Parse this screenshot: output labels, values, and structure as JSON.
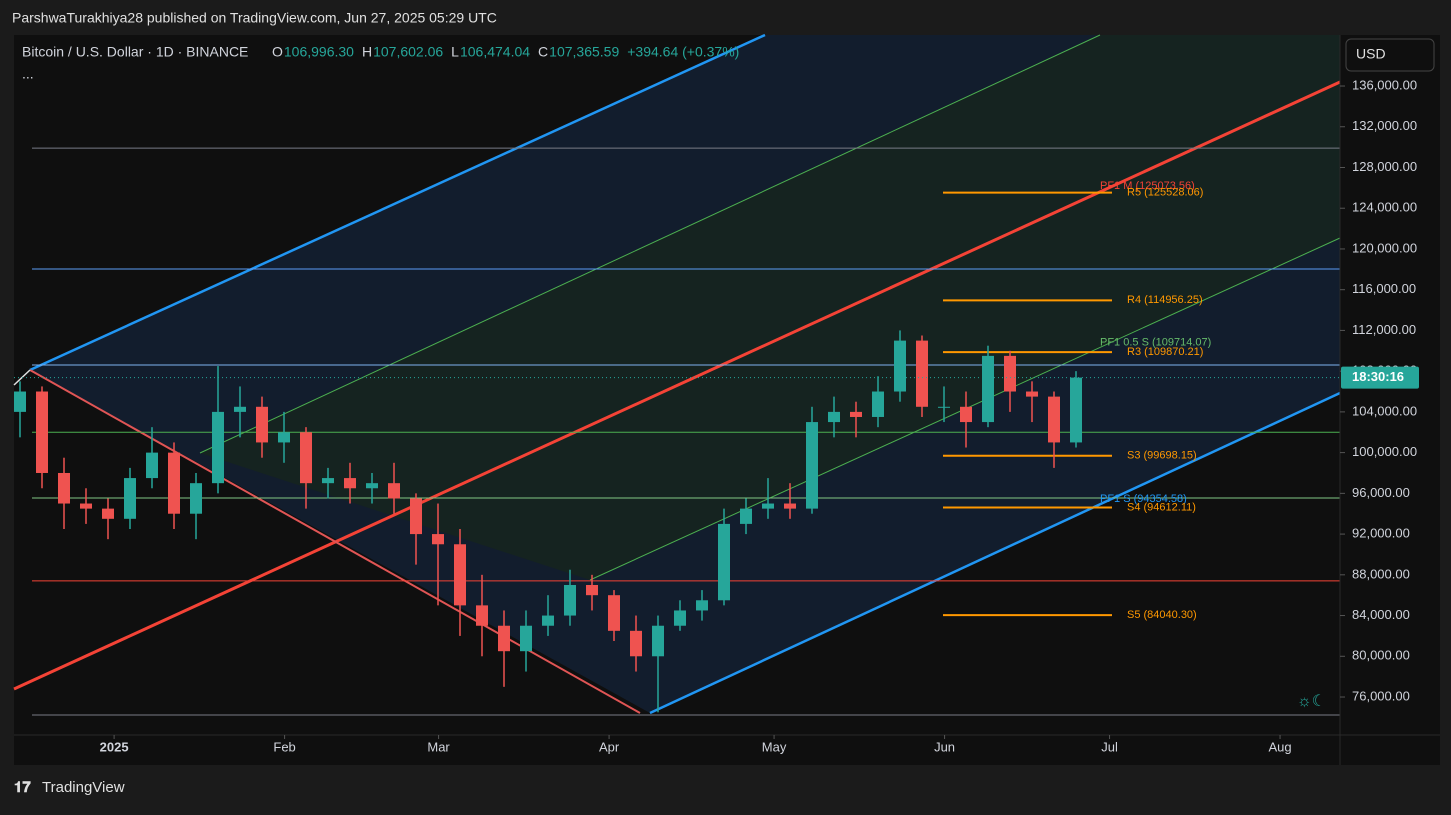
{
  "header": {
    "attribution": "ParshwaTurakhiya28 published on TradingView.com, Jun 27, 2025 05:29 UTC",
    "footer_logo": "TradingView",
    "currency_button": "USD"
  },
  "chart_data": {
    "type": "candlestick",
    "title": "Bitcoin / U.S. Dollar · 1D · BINANCE",
    "ohlc_legend": [
      {
        "key": "O",
        "value": "106,996.30"
      },
      {
        "key": "H",
        "value": "107,602.06"
      },
      {
        "key": "L",
        "value": "106,474.04"
      },
      {
        "key": "C",
        "value": "107,365.59"
      }
    ],
    "change": "+394.64 (+0.37%)",
    "up_color": "#26a69a",
    "down_color": "#ef5350",
    "candles": {
      "open": [
        104000,
        106000,
        98000,
        95000,
        94500,
        93500,
        97500,
        100000,
        94000,
        97000,
        104000,
        104500,
        101000,
        102000,
        97000,
        97500,
        96500,
        97000,
        95500,
        92000,
        91000,
        85000,
        83000,
        80500,
        83000,
        84000,
        87000,
        86000,
        82500,
        80000,
        83000,
        84500,
        85500,
        93000,
        94500,
        95000,
        94500,
        103000,
        104000,
        103500,
        106000,
        111000,
        104500,
        104500,
        103000,
        109500,
        106000,
        105500,
        101000
      ],
      "high": [
        107000,
        106500,
        99500,
        96500,
        95500,
        98500,
        102500,
        101000,
        98000,
        108500,
        106500,
        105500,
        104000,
        102500,
        98500,
        99000,
        98000,
        99000,
        96000,
        95000,
        92500,
        88000,
        84500,
        84500,
        86000,
        88500,
        88000,
        86500,
        84000,
        84000,
        85500,
        86500,
        94500,
        95500,
        97500,
        97000,
        104500,
        105500,
        105000,
        107500,
        112000,
        111500,
        106500,
        106000,
        110500,
        110000,
        107000,
        106000,
        108000
      ],
      "low": [
        101500,
        96500,
        92500,
        93000,
        91500,
        92500,
        96500,
        92500,
        91500,
        96000,
        101500,
        99500,
        99000,
        94500,
        95500,
        95000,
        95000,
        94000,
        89000,
        85000,
        82000,
        80000,
        77000,
        78500,
        82000,
        83000,
        84500,
        81500,
        78500,
        74500,
        82500,
        83500,
        85000,
        92000,
        93500,
        93500,
        94000,
        101500,
        101500,
        102500,
        105000,
        103500,
        103000,
        100500,
        102500,
        104000,
        103000,
        98500,
        100500
      ],
      "close": [
        106000,
        98000,
        95000,
        94500,
        93500,
        97500,
        100000,
        94000,
        97000,
        104000,
        104500,
        101000,
        102000,
        97000,
        97500,
        96500,
        97000,
        95500,
        92000,
        91000,
        85000,
        83000,
        80500,
        83000,
        84000,
        87000,
        86000,
        82500,
        80000,
        83000,
        84500,
        85500,
        93000,
        94500,
        95000,
        94500,
        103000,
        104000,
        103500,
        106000,
        111000,
        104500,
        104500,
        103000,
        109500,
        106000,
        105500,
        101000,
        107366
      ]
    },
    "last_price": 107365.59,
    "countdown": "18:30:16",
    "last_price_color": "#26a69a",
    "ylim": [
      72270,
      141010
    ],
    "yticks": [
      {
        "value": 76000,
        "label": "76,000.00"
      },
      {
        "value": 80000,
        "label": "80,000.00"
      },
      {
        "value": 84000,
        "label": "84,000.00"
      },
      {
        "value": 88000,
        "label": "88,000.00"
      },
      {
        "value": 92000,
        "label": "92,000.00"
      },
      {
        "value": 96000,
        "label": "96,000.00"
      },
      {
        "value": 100000,
        "label": "100,000.00"
      },
      {
        "value": 104000,
        "label": "104,000.00"
      },
      {
        "value": 108000,
        "label": "108,000.00"
      },
      {
        "value": 112000,
        "label": "112,000.00"
      },
      {
        "value": 116000,
        "label": "116,000.00"
      },
      {
        "value": 120000,
        "label": "120,000.00"
      },
      {
        "value": 124000,
        "label": "124,000.00"
      },
      {
        "value": 128000,
        "label": "128,000.00"
      },
      {
        "value": 132000,
        "label": "132,000.00"
      },
      {
        "value": 136000,
        "label": "136,000.00"
      }
    ],
    "xlim": [
      -18.2,
      222.9
    ],
    "xticks": [
      {
        "value": 0,
        "label": "2025"
      },
      {
        "value": 31,
        "label": "Feb"
      },
      {
        "value": 59,
        "label": "Mar"
      },
      {
        "value": 90,
        "label": "Apr"
      },
      {
        "value": 120,
        "label": "May"
      },
      {
        "value": 151,
        "label": "Jun"
      },
      {
        "value": 181,
        "label": "Jul"
      },
      {
        "value": 212,
        "label": "Aug"
      }
    ],
    "reference_lines": {
      "values": [
        129900,
        118030,
        108600,
        102000,
        95540,
        87400,
        74230
      ],
      "colors": [
        "#787b86",
        "#5b9cf6",
        "#7fb2f0",
        "#4caf50",
        "#81c784",
        "#f44336",
        "#787b86"
      ]
    },
    "levels": [
      {
        "label": "PF1 M (125073.56)",
        "value": 125073.56,
        "color": "#f44336",
        "segment": false
      },
      {
        "label": "R5 (125528.06)",
        "value": 125528.06,
        "color": "#ff9800",
        "segment": true
      },
      {
        "label": "R4 (114956.25)",
        "value": 114956.25,
        "color": "#ff9800",
        "segment": true
      },
      {
        "label": "PF1 0.5 S (109714.07)",
        "value": 109714.07,
        "color": "#66bb6a",
        "segment": false
      },
      {
        "label": "R3 (109870.21)",
        "value": 109870.21,
        "color": "#ff9800",
        "segment": true
      },
      {
        "label": "S3 (99698.15)",
        "value": 99698.15,
        "color": "#ff9800",
        "segment": true
      },
      {
        "label": "PF1 S (94354.58)",
        "value": 94354.58,
        "color": "#2196f3",
        "segment": false
      },
      {
        "label": "S4 (94612.11)",
        "value": 94612.11,
        "color": "#ff9800",
        "segment": true
      },
      {
        "label": "S5 (84040.30)",
        "value": 84040.3,
        "color": "#ff9800",
        "segment": true
      }
    ]
  }
}
